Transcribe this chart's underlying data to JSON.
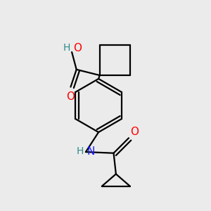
{
  "background_color": "#ebebeb",
  "bond_color": "#000000",
  "line_width": 1.6,
  "atom_colors": {
    "O": "#ff0000",
    "N": "#1a1aff",
    "H_teal": "#2e8b8b",
    "C": "#000000"
  }
}
